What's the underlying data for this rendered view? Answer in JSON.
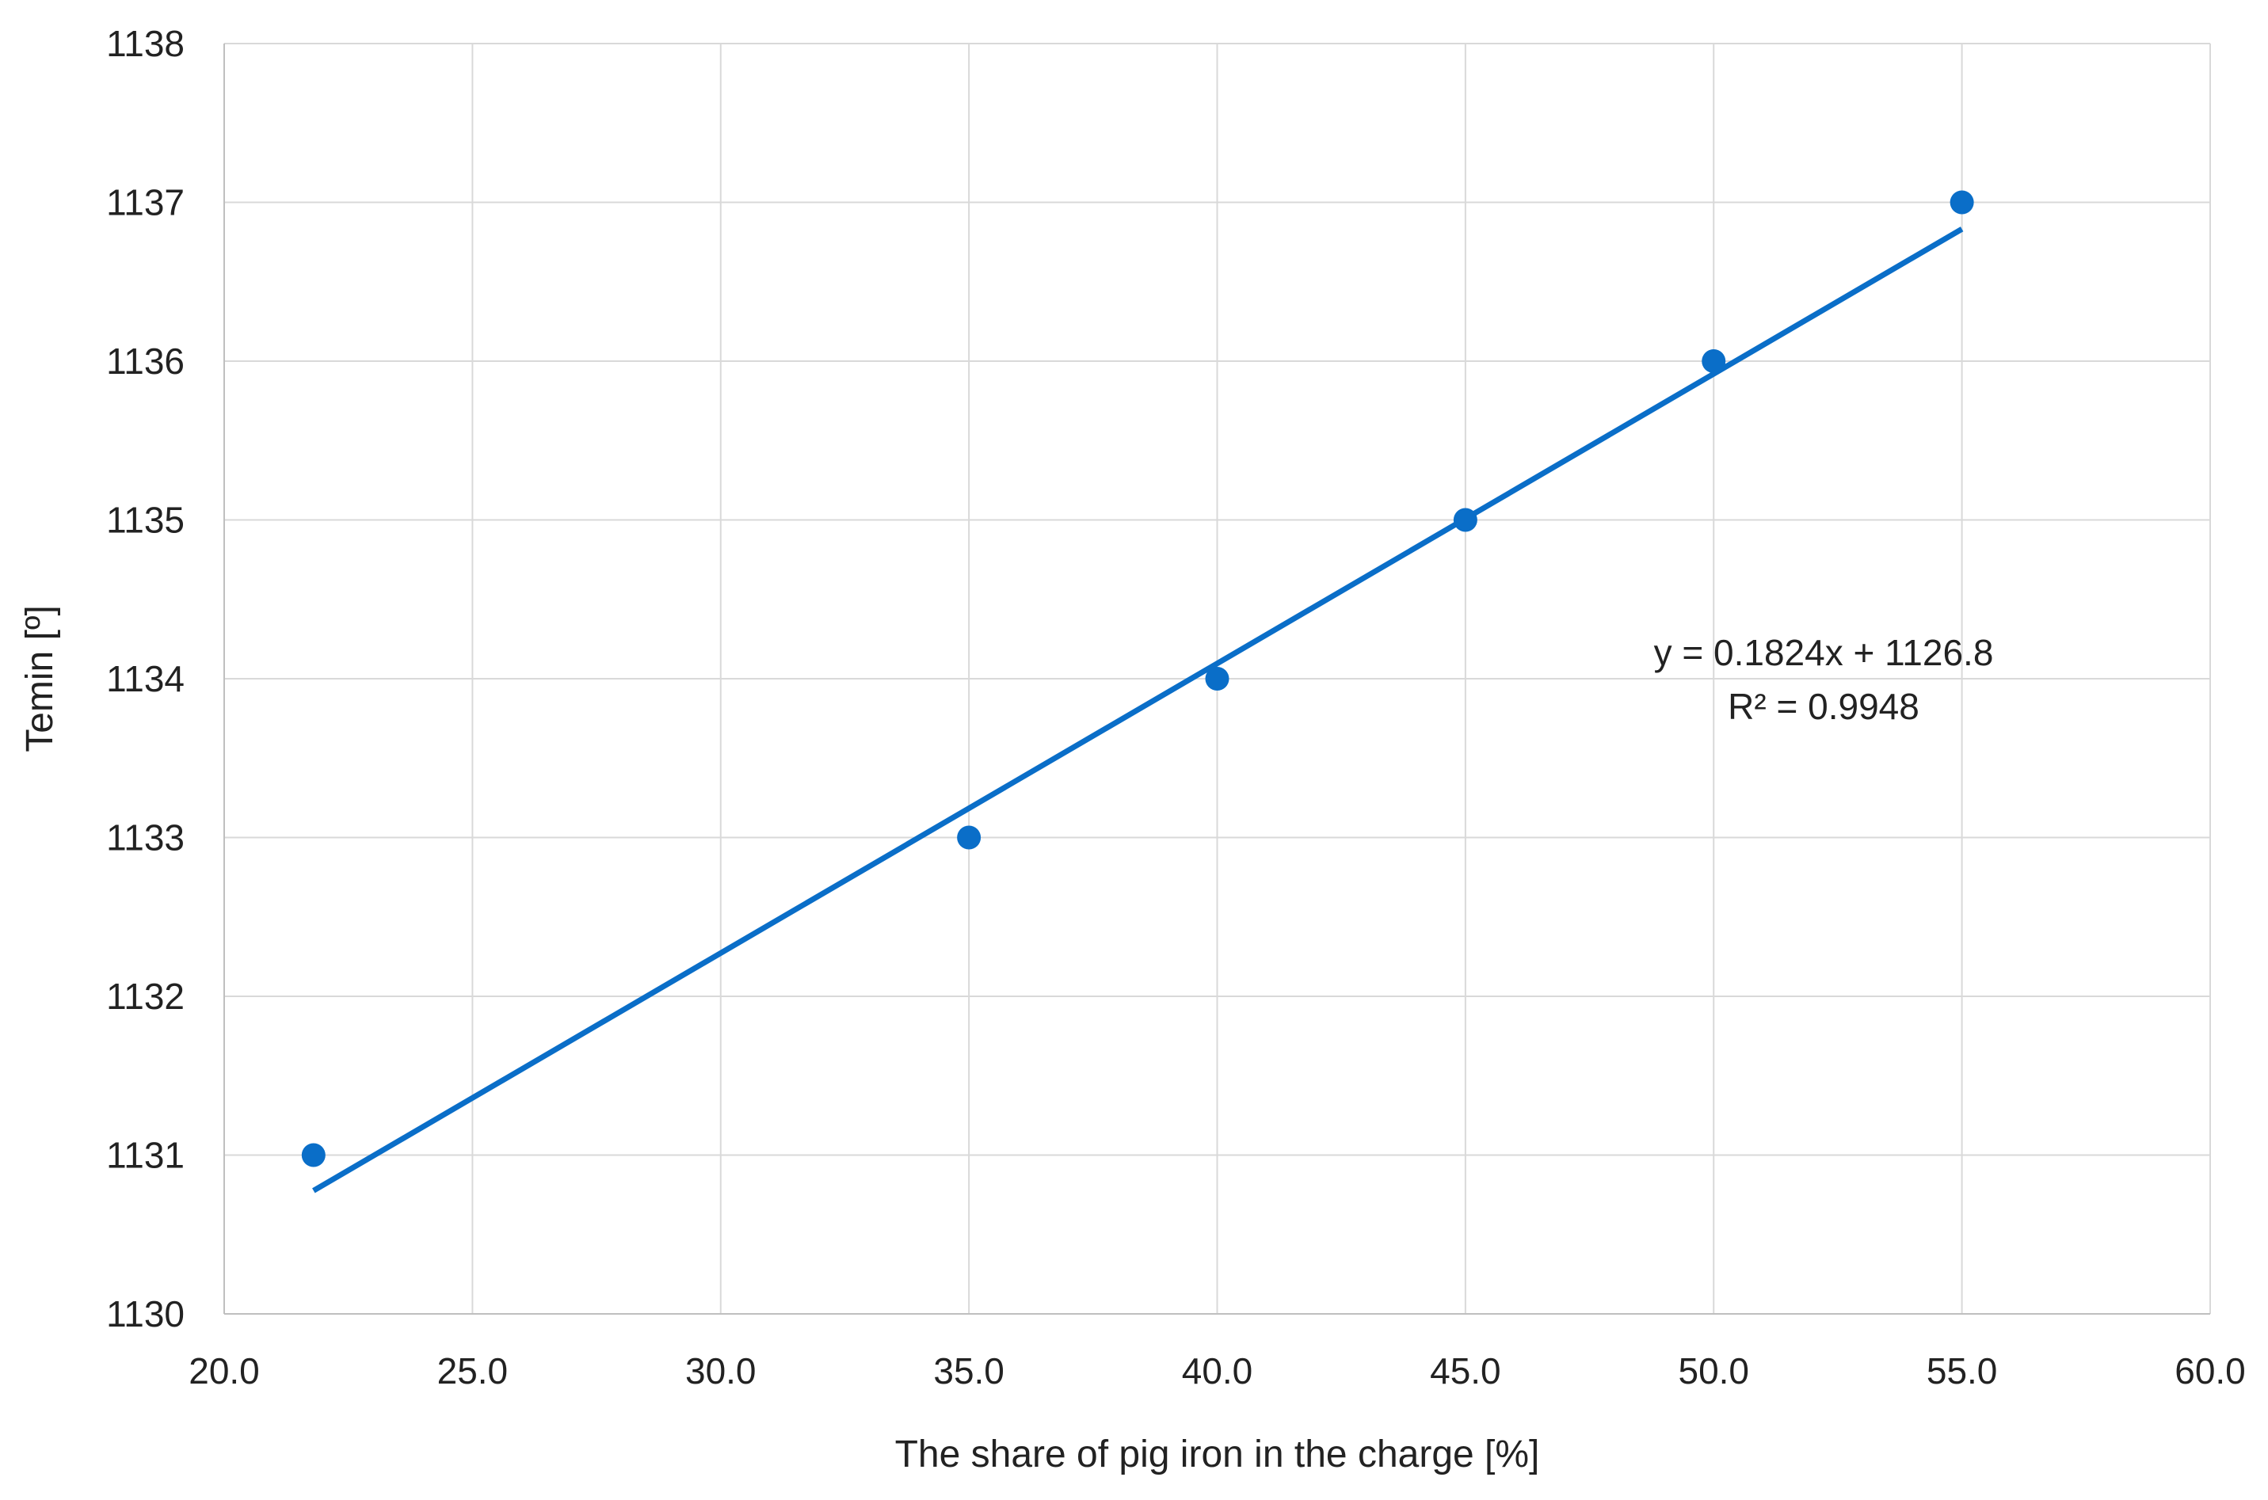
{
  "chart_data": {
    "type": "scatter",
    "title": "",
    "xlabel": "The share of pig iron in the charge [%]",
    "ylabel": "Temin [º]",
    "xlim": [
      20.0,
      60.0
    ],
    "ylim": [
      1130,
      1138
    ],
    "x_ticks": [
      "20.0",
      "25.0",
      "30.0",
      "35.0",
      "40.0",
      "45.0",
      "50.0",
      "55.0",
      "60.0"
    ],
    "y_ticks": [
      "1130",
      "1131",
      "1132",
      "1133",
      "1134",
      "1135",
      "1136",
      "1137",
      "1138"
    ],
    "grid": true,
    "legend": "none",
    "series": [
      {
        "x": [
          21.8,
          35.0,
          40.0,
          45.0,
          50.0,
          55.0
        ],
        "y": [
          1131,
          1133,
          1134,
          1135,
          1136,
          1137
        ]
      }
    ],
    "trendline": {
      "type": "linear",
      "slope": 0.1824,
      "intercept": 1126.8,
      "x_range": [
        21.8,
        55.0
      ],
      "equation": "y = 0.1824x + 1126.8",
      "r_squared": "R² = 0.9948"
    },
    "colors": {
      "series": "#0A6EC8",
      "trendline": "#0A6EC8",
      "grid": "#D9D9D9",
      "axis": "#BFBFBF",
      "text": "#222222"
    }
  }
}
